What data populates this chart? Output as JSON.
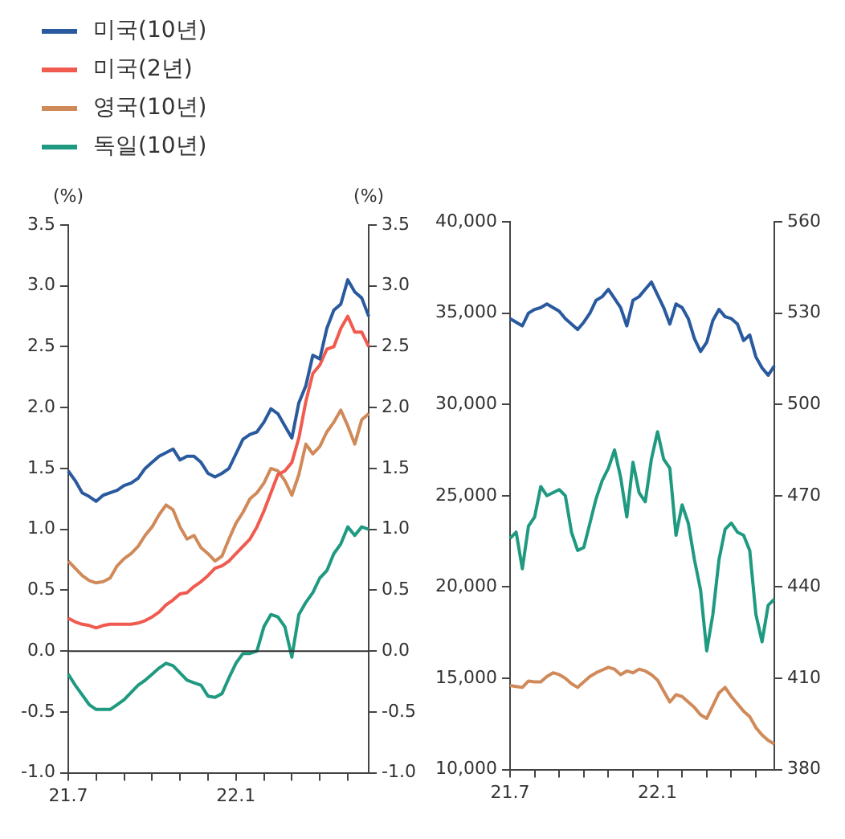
{
  "chart_data": [
    {
      "type": "line",
      "ylabel": "(%)",
      "y2label": "(%)",
      "legend": "top",
      "marker": "none",
      "grid": false,
      "categories": [
        "21.7",
        null,
        null,
        null,
        null,
        null,
        null,
        null,
        null,
        null,
        null,
        null,
        null,
        null,
        null,
        null,
        null,
        null,
        null,
        null,
        null,
        null,
        null,
        null,
        "22.1",
        null,
        null,
        null,
        null,
        null,
        null,
        null,
        null,
        null,
        null,
        null,
        null,
        null,
        null,
        null,
        null,
        null,
        null,
        null
      ],
      "ylim": [
        -1.0,
        3.5
      ],
      "yticks": [
        {
          "value": -1,
          "label": "-1.0"
        },
        {
          "value": -0.5,
          "label": "-0.5"
        },
        {
          "value": 0,
          "label": "0.0"
        },
        {
          "value": 0.5,
          "label": "0.5"
        },
        {
          "value": 1,
          "label": "1.0"
        },
        {
          "value": 1.5,
          "label": "1.5"
        },
        {
          "value": 2,
          "label": "2.0"
        },
        {
          "value": 2.5,
          "label": "2.5"
        },
        {
          "value": 3,
          "label": "3.0"
        },
        {
          "value": 3.5,
          "label": "3.5"
        }
      ],
      "y2lim": [
        -1.0,
        3.5
      ],
      "y2ticks": [
        {
          "value": -1,
          "label": "-1.0"
        },
        {
          "value": -0.5,
          "label": "-0.5"
        },
        {
          "value": 0,
          "label": "0.0"
        },
        {
          "value": 0.5,
          "label": "0.5"
        },
        {
          "value": 1,
          "label": "1.0"
        },
        {
          "value": 1.5,
          "label": "1.5"
        },
        {
          "value": 2,
          "label": "2.0"
        },
        {
          "value": 2.5,
          "label": "2.5"
        },
        {
          "value": 3,
          "label": "3.0"
        },
        {
          "value": 3.5,
          "label": "3.5"
        }
      ],
      "ref_lines": [
        {
          "axis": "y",
          "value": 0,
          "color": "#333333"
        }
      ],
      "series": [
        {
          "name": "미국(10년)",
          "color": "#2a5a9e",
          "values": [
            1.48,
            1.4,
            1.3,
            1.27,
            1.23,
            1.28,
            1.3,
            1.32,
            1.36,
            1.38,
            1.42,
            1.5,
            1.55,
            1.6,
            1.63,
            1.66,
            1.57,
            1.6,
            1.6,
            1.55,
            1.46,
            1.43,
            1.46,
            1.5,
            1.62,
            1.74,
            1.78,
            1.8,
            1.88,
            1.99,
            1.95,
            1.85,
            1.75,
            2.04,
            2.18,
            2.43,
            2.4,
            2.65,
            2.8,
            2.85,
            3.05,
            2.95,
            2.9,
            2.75
          ]
        },
        {
          "name": "미국(2년)",
          "color": "#f05a4f",
          "values": [
            0.27,
            0.24,
            0.22,
            0.21,
            0.19,
            0.21,
            0.22,
            0.22,
            0.22,
            0.22,
            0.23,
            0.25,
            0.28,
            0.32,
            0.38,
            0.42,
            0.47,
            0.48,
            0.53,
            0.57,
            0.62,
            0.68,
            0.7,
            0.74,
            0.8,
            0.86,
            0.92,
            1.02,
            1.15,
            1.3,
            1.45,
            1.48,
            1.55,
            1.75,
            2.05,
            2.28,
            2.35,
            2.48,
            2.5,
            2.65,
            2.75,
            2.62,
            2.62,
            2.5
          ]
        },
        {
          "name": "영국(10년)",
          "color": "#d08a5a",
          "values": [
            0.74,
            0.68,
            0.62,
            0.58,
            0.56,
            0.57,
            0.6,
            0.7,
            0.76,
            0.8,
            0.86,
            0.95,
            1.02,
            1.12,
            1.2,
            1.16,
            1.02,
            0.92,
            0.95,
            0.85,
            0.8,
            0.74,
            0.78,
            0.92,
            1.05,
            1.14,
            1.25,
            1.3,
            1.38,
            1.5,
            1.48,
            1.4,
            1.28,
            1.45,
            1.7,
            1.62,
            1.68,
            1.8,
            1.88,
            1.98,
            1.85,
            1.7,
            1.9,
            1.95
          ]
        },
        {
          "name": "독일(10년)",
          "color": "#1f9a80",
          "values": [
            -0.19,
            -0.28,
            -0.36,
            -0.44,
            -0.48,
            -0.48,
            -0.48,
            -0.44,
            -0.4,
            -0.34,
            -0.28,
            -0.24,
            -0.19,
            -0.14,
            -0.1,
            -0.12,
            -0.18,
            -0.24,
            -0.26,
            -0.28,
            -0.37,
            -0.38,
            -0.35,
            -0.22,
            -0.1,
            -0.02,
            -0.02,
            0.0,
            0.2,
            0.3,
            0.28,
            0.2,
            -0.05,
            0.3,
            0.4,
            0.48,
            0.6,
            0.66,
            0.8,
            0.88,
            1.02,
            0.95,
            1.02,
            1.0
          ]
        }
      ]
    },
    {
      "type": "line",
      "marker": "none",
      "grid": false,
      "categories": [
        "21.7",
        null,
        null,
        null,
        null,
        null,
        null,
        null,
        null,
        null,
        null,
        null,
        null,
        null,
        null,
        null,
        null,
        null,
        null,
        null,
        null,
        null,
        null,
        null,
        "22.1",
        null,
        null,
        null,
        null,
        null,
        null,
        null,
        null,
        null,
        null,
        null,
        null,
        null,
        null,
        null,
        null,
        null,
        null,
        null
      ],
      "ylim": [
        10000,
        40000
      ],
      "yticks": [
        {
          "value": 10000,
          "label": "10,000"
        },
        {
          "value": 15000,
          "label": "15,000"
        },
        {
          "value": 20000,
          "label": "20,000"
        },
        {
          "value": 25000,
          "label": "25,000"
        },
        {
          "value": 30000,
          "label": "30,000"
        },
        {
          "value": 35000,
          "label": "35,000"
        },
        {
          "value": 40000,
          "label": "40,000"
        }
      ],
      "y2lim": [
        380,
        560
      ],
      "y2ticks": [
        380,
        410,
        440,
        470,
        500,
        530,
        560
      ],
      "series": [
        {
          "color": "#2a5a9e",
          "values": [
            34700,
            34500,
            34300,
            35000,
            35200,
            35300,
            35500,
            35300,
            35100,
            34700,
            34400,
            34100,
            34500,
            35000,
            35700,
            35900,
            36300,
            35800,
            35300,
            34300,
            35700,
            35900,
            36300,
            36700,
            36000,
            35300,
            34400,
            35500,
            35300,
            34700,
            33600,
            32900,
            33400,
            34600,
            35200,
            34800,
            34700,
            34400,
            33500,
            33800,
            32600,
            32000,
            31600,
            32100
          ]
        },
        {
          "color": "#d08a5a",
          "values": [
            14600,
            14550,
            14500,
            14850,
            14800,
            14800,
            15100,
            15300,
            15200,
            15000,
            14700,
            14500,
            14800,
            15100,
            15300,
            15450,
            15600,
            15500,
            15200,
            15400,
            15300,
            15500,
            15400,
            15200,
            14900,
            14300,
            13700,
            14100,
            14000,
            13700,
            13400,
            13000,
            12800,
            13500,
            14200,
            14500,
            14000,
            13600,
            13200,
            12900,
            12300,
            11900,
            11600,
            11400
          ]
        },
        {
          "color": "#1f9a80",
          "axis": "y2",
          "values": [
            456,
            458,
            446,
            460,
            463,
            473,
            470,
            471,
            472,
            470,
            458,
            452,
            453,
            461,
            469,
            475,
            479,
            485,
            476,
            463,
            481,
            471,
            468,
            482,
            491,
            482,
            479,
            457,
            467,
            461,
            449,
            439,
            419,
            431,
            449,
            459,
            461,
            458,
            457,
            452,
            431,
            422,
            434,
            436
          ]
        }
      ]
    }
  ]
}
